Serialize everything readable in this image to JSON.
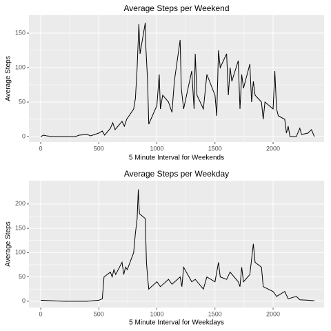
{
  "chart_data": [
    {
      "type": "line",
      "title": "Average Steps per Weekend",
      "x_label": "5 Minute Interval for Weekends",
      "y_label": "Average Steps",
      "color": "#000000",
      "grid": true,
      "xlim": [
        -101,
        2439
      ],
      "xticks": [
        0,
        500,
        1000,
        1500,
        2000
      ],
      "ylim": [
        -8,
        176
      ],
      "yticks": [
        0,
        50,
        100,
        150
      ],
      "x": [
        0,
        25,
        50,
        100,
        200,
        300,
        330,
        400,
        430,
        500,
        530,
        550,
        600,
        620,
        640,
        700,
        720,
        740,
        800,
        815,
        830,
        845,
        855,
        900,
        905,
        920,
        930,
        1000,
        1020,
        1030,
        1050,
        1100,
        1130,
        1150,
        1200,
        1210,
        1230,
        1300,
        1320,
        1330,
        1345,
        1400,
        1430,
        1500,
        1515,
        1530,
        1545,
        1600,
        1615,
        1630,
        1645,
        1700,
        1715,
        1730,
        1745,
        1800,
        1815,
        1830,
        1845,
        1900,
        1915,
        1930,
        2000,
        2015,
        2030,
        2045,
        2100,
        2115,
        2130,
        2145,
        2200,
        2230,
        2245,
        2300,
        2330,
        2355
      ],
      "values": [
        0,
        2,
        1,
        0,
        0,
        0,
        2,
        3,
        1,
        5,
        8,
        2,
        12,
        20,
        10,
        22,
        15,
        25,
        40,
        55,
        100,
        163,
        120,
        165,
        130,
        80,
        18,
        45,
        90,
        40,
        60,
        50,
        35,
        80,
        140,
        70,
        40,
        95,
        40,
        120,
        60,
        40,
        90,
        60,
        30,
        125,
        100,
        120,
        60,
        100,
        80,
        110,
        40,
        90,
        70,
        105,
        50,
        80,
        60,
        50,
        25,
        50,
        40,
        95,
        40,
        30,
        25,
        5,
        15,
        0,
        0,
        12,
        3,
        5,
        10,
        0
      ]
    },
    {
      "type": "line",
      "title": "Average Steps per Weekday",
      "x_label": "5 Minute Interval for Weekdays",
      "y_label": "Average Steps",
      "color": "#000000",
      "grid": true,
      "xlim": [
        -101,
        2439
      ],
      "xticks": [
        0,
        500,
        1000,
        1500,
        2000
      ],
      "ylim": [
        -13,
        248
      ],
      "yticks": [
        0,
        50,
        100,
        150,
        200
      ],
      "x": [
        0,
        100,
        200,
        300,
        400,
        500,
        530,
        545,
        600,
        615,
        630,
        645,
        700,
        715,
        730,
        745,
        800,
        815,
        830,
        840,
        845,
        850,
        900,
        910,
        920,
        930,
        1000,
        1030,
        1100,
        1130,
        1200,
        1215,
        1230,
        1300,
        1330,
        1400,
        1430,
        1500,
        1530,
        1545,
        1600,
        1630,
        1700,
        1715,
        1730,
        1745,
        1800,
        1830,
        1845,
        1900,
        1915,
        2000,
        2030,
        2100,
        2130,
        2200,
        2230,
        2300,
        2355
      ],
      "values": [
        2,
        1,
        0,
        0,
        0,
        2,
        5,
        50,
        60,
        50,
        65,
        55,
        80,
        55,
        70,
        65,
        100,
        140,
        170,
        230,
        200,
        180,
        170,
        80,
        50,
        25,
        40,
        30,
        45,
        35,
        50,
        30,
        70,
        40,
        45,
        25,
        50,
        40,
        80,
        50,
        45,
        60,
        40,
        30,
        70,
        40,
        55,
        118,
        80,
        70,
        30,
        20,
        10,
        20,
        5,
        10,
        3,
        2,
        1
      ]
    }
  ]
}
